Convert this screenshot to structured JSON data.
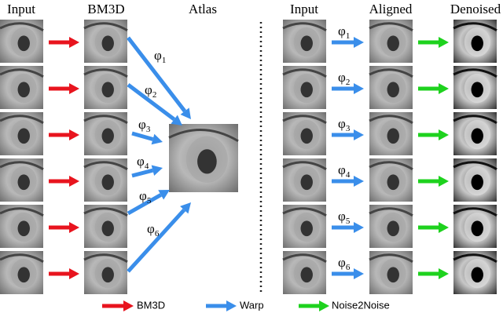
{
  "headers": {
    "left": [
      "Input",
      "BM3D",
      "Atlas"
    ],
    "right": [
      "Input",
      "Aligned",
      "Denoised"
    ]
  },
  "left_warp_labels": [
    {
      "symbol": "φ",
      "subscript": "1"
    },
    {
      "symbol": "φ",
      "subscript": "2"
    },
    {
      "symbol": "φ",
      "subscript": "3"
    },
    {
      "symbol": "φ",
      "subscript": "4"
    },
    {
      "symbol": "φ",
      "subscript": "5"
    },
    {
      "symbol": "φ",
      "subscript": "6"
    }
  ],
  "right_warp_labels": [
    {
      "symbol": "φ",
      "subscript": "1"
    },
    {
      "symbol": "φ",
      "subscript": "2"
    },
    {
      "symbol": "φ",
      "subscript": "3"
    },
    {
      "symbol": "φ",
      "subscript": "4"
    },
    {
      "symbol": "φ",
      "subscript": "5"
    },
    {
      "symbol": "φ",
      "subscript": "6"
    }
  ],
  "legend": [
    "BM3D",
    "Warp",
    "Noise2Noise"
  ]
}
